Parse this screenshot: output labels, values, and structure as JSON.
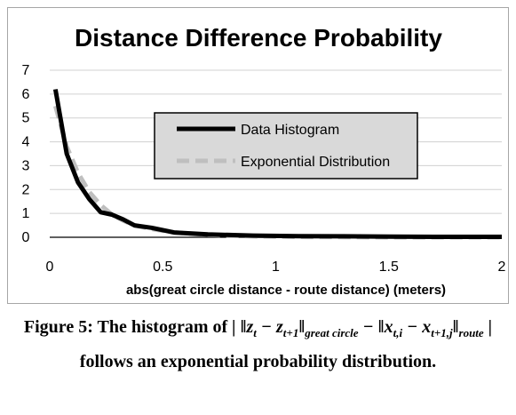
{
  "chart_data": {
    "type": "line",
    "title": "Distance Difference Probability",
    "xlabel": "abs(great circle distance - route distance)  (meters)",
    "ylabel": "",
    "xlim": [
      0,
      2
    ],
    "ylim": [
      0,
      7
    ],
    "x_ticks": [
      "0",
      "0.5",
      "1",
      "1.5",
      "2"
    ],
    "y_ticks": [
      "0",
      "1",
      "2",
      "3",
      "4",
      "5",
      "6",
      "7"
    ],
    "grid": "horizontal",
    "legend_position": "center-right",
    "series": [
      {
        "name": "Data Histogram",
        "color": "#000000",
        "style": "solid",
        "x": [
          0.025,
          0.075,
          0.125,
          0.175,
          0.225,
          0.275,
          0.325,
          0.375,
          0.45,
          0.55,
          0.7,
          0.9,
          1.1,
          1.3,
          1.5,
          1.7,
          1.9,
          2.0
        ],
        "y": [
          6.2,
          3.5,
          2.3,
          1.6,
          1.05,
          0.95,
          0.75,
          0.5,
          0.4,
          0.2,
          0.12,
          0.07,
          0.05,
          0.04,
          0.03,
          0.02,
          0.02,
          0.02
        ]
      },
      {
        "name": "Exponential Distribution",
        "color": "#bfbfbf",
        "style": "dashed",
        "x": [
          0.025,
          0.075,
          0.125,
          0.175,
          0.225,
          0.275,
          0.325,
          0.375,
          0.45,
          0.55,
          0.7,
          0.9,
          1.1,
          1.3,
          1.5,
          1.7,
          1.9,
          2.0
        ],
        "y": [
          5.5,
          3.8,
          2.7,
          1.9,
          1.35,
          0.95,
          0.7,
          0.5,
          0.35,
          0.2,
          0.1,
          0.04,
          0.02,
          0.01,
          0.0,
          0.0,
          0.0,
          0.0
        ]
      }
    ]
  },
  "caption": {
    "prefix": "Figure 5: The histogram of ",
    "math_1": "‖z",
    "sub_1": "t",
    "math_2": " − z",
    "sub_2": "t+1",
    "math_3": "‖",
    "sub_3": "great circle",
    "math_4": " − ‖x",
    "sub_4": "t,i",
    "math_5": " − x",
    "sub_5": "t+1,j",
    "math_6": "‖",
    "sub_6": "route",
    "suffix": " follows an exponential probability distribution."
  }
}
